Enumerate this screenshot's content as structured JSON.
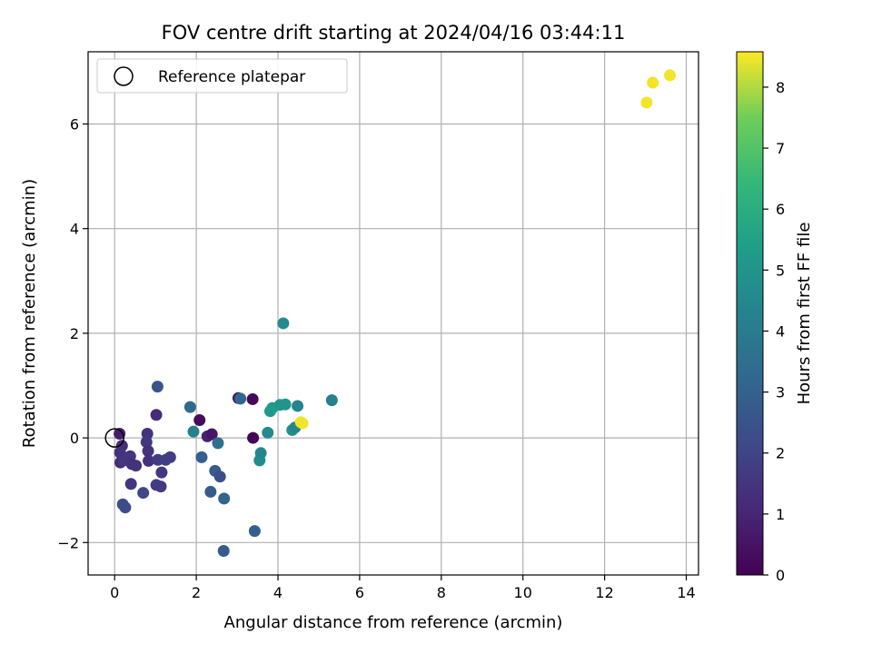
{
  "chart_data": {
    "type": "scatter",
    "title": "FOV centre drift starting at 2024/04/16 03:44:11",
    "xlabel": "Angular distance from reference (arcmin)",
    "ylabel": "Rotation from reference (arcmin)",
    "xlim": [
      -0.65,
      14.3
    ],
    "ylim": [
      -2.62,
      7.38
    ],
    "xticks": [
      0,
      2,
      4,
      6,
      8,
      10,
      12,
      14
    ],
    "yticks": [
      -2,
      0,
      2,
      4,
      6
    ],
    "grid": true,
    "colorbar": {
      "label": "Hours from first FF file",
      "range": [
        0,
        8.58
      ],
      "ticks": [
        0,
        1,
        2,
        3,
        4,
        5,
        6,
        7,
        8
      ],
      "colormap": "viridis"
    },
    "legend": {
      "placement": "top-left",
      "entries": [
        "Reference platepar"
      ]
    },
    "reference_point": {
      "x": 0,
      "y": 0
    },
    "points": [
      {
        "x": 0.12,
        "y": 0.08,
        "h": 0.8
      },
      {
        "x": 0.18,
        "y": -0.15,
        "h": 1.2
      },
      {
        "x": 0.13,
        "y": -0.28,
        "h": 1.4
      },
      {
        "x": 0.14,
        "y": -0.47,
        "h": 1.2
      },
      {
        "x": 0.22,
        "y": -0.43,
        "h": 1.5
      },
      {
        "x": 0.2,
        "y": -1.27,
        "h": 2.3
      },
      {
        "x": 0.26,
        "y": -1.33,
        "h": 2.3
      },
      {
        "x": 0.38,
        "y": -0.35,
        "h": 1.5
      },
      {
        "x": 0.42,
        "y": -0.5,
        "h": 1.3
      },
      {
        "x": 0.52,
        "y": -0.53,
        "h": 1.4
      },
      {
        "x": 0.4,
        "y": -0.88,
        "h": 1.5
      },
      {
        "x": 0.7,
        "y": -1.05,
        "h": 2.1
      },
      {
        "x": 0.8,
        "y": 0.08,
        "h": 1.4
      },
      {
        "x": 0.78,
        "y": -0.08,
        "h": 1.6
      },
      {
        "x": 0.82,
        "y": -0.25,
        "h": 1.4
      },
      {
        "x": 0.83,
        "y": -0.44,
        "h": 1.3
      },
      {
        "x": 1.02,
        "y": 0.44,
        "h": 1.2
      },
      {
        "x": 1.05,
        "y": 0.98,
        "h": 2.5
      },
      {
        "x": 1.06,
        "y": -0.42,
        "h": 1.7
      },
      {
        "x": 1.02,
        "y": -0.9,
        "h": 1.8
      },
      {
        "x": 1.13,
        "y": -0.93,
        "h": 1.7
      },
      {
        "x": 1.15,
        "y": -0.66,
        "h": 1.6
      },
      {
        "x": 1.25,
        "y": -0.42,
        "h": 1.9
      },
      {
        "x": 1.36,
        "y": -0.37,
        "h": 1.8
      },
      {
        "x": 1.85,
        "y": 0.59,
        "h": 3.3
      },
      {
        "x": 1.93,
        "y": 0.12,
        "h": 4.2
      },
      {
        "x": 2.08,
        "y": 0.34,
        "h": 0.3
      },
      {
        "x": 2.13,
        "y": -0.37,
        "h": 2.9
      },
      {
        "x": 2.27,
        "y": 0.03,
        "h": 0.9
      },
      {
        "x": 2.38,
        "y": 0.07,
        "h": 0.6
      },
      {
        "x": 2.35,
        "y": -1.03,
        "h": 2.8
      },
      {
        "x": 2.46,
        "y": -0.63,
        "h": 2.8
      },
      {
        "x": 2.53,
        "y": -0.1,
        "h": 3.5
      },
      {
        "x": 2.58,
        "y": -0.74,
        "h": 2.3
      },
      {
        "x": 2.68,
        "y": -1.16,
        "h": 3.1
      },
      {
        "x": 2.67,
        "y": -2.16,
        "h": 2.8
      },
      {
        "x": 3.03,
        "y": 0.76,
        "h": 0.5
      },
      {
        "x": 3.08,
        "y": 0.75,
        "h": 3.2
      },
      {
        "x": 3.38,
        "y": 0.74,
        "h": 0.2
      },
      {
        "x": 3.39,
        "y": 0.0,
        "h": 0.1
      },
      {
        "x": 3.43,
        "y": -1.78,
        "h": 2.9
      },
      {
        "x": 3.55,
        "y": -0.43,
        "h": 4.7
      },
      {
        "x": 3.58,
        "y": -0.29,
        "h": 4.5
      },
      {
        "x": 3.75,
        "y": 0.1,
        "h": 4.6
      },
      {
        "x": 3.81,
        "y": 0.51,
        "h": 5.1
      },
      {
        "x": 3.86,
        "y": 0.57,
        "h": 5.3
      },
      {
        "x": 4.05,
        "y": 0.63,
        "h": 5.0
      },
      {
        "x": 4.13,
        "y": 2.19,
        "h": 4.6
      },
      {
        "x": 4.18,
        "y": 0.64,
        "h": 5.0
      },
      {
        "x": 4.35,
        "y": 0.15,
        "h": 4.7
      },
      {
        "x": 4.42,
        "y": 0.2,
        "h": 4.4
      },
      {
        "x": 4.48,
        "y": 0.61,
        "h": 4.4
      },
      {
        "x": 4.56,
        "y": 0.3,
        "h": 8.5
      },
      {
        "x": 4.6,
        "y": 0.28,
        "h": 8.5
      },
      {
        "x": 5.32,
        "y": 0.72,
        "h": 4.2
      },
      {
        "x": 13.03,
        "y": 6.41,
        "h": 8.5
      },
      {
        "x": 13.18,
        "y": 6.79,
        "h": 8.5
      },
      {
        "x": 13.6,
        "y": 6.93,
        "h": 8.5
      }
    ]
  }
}
